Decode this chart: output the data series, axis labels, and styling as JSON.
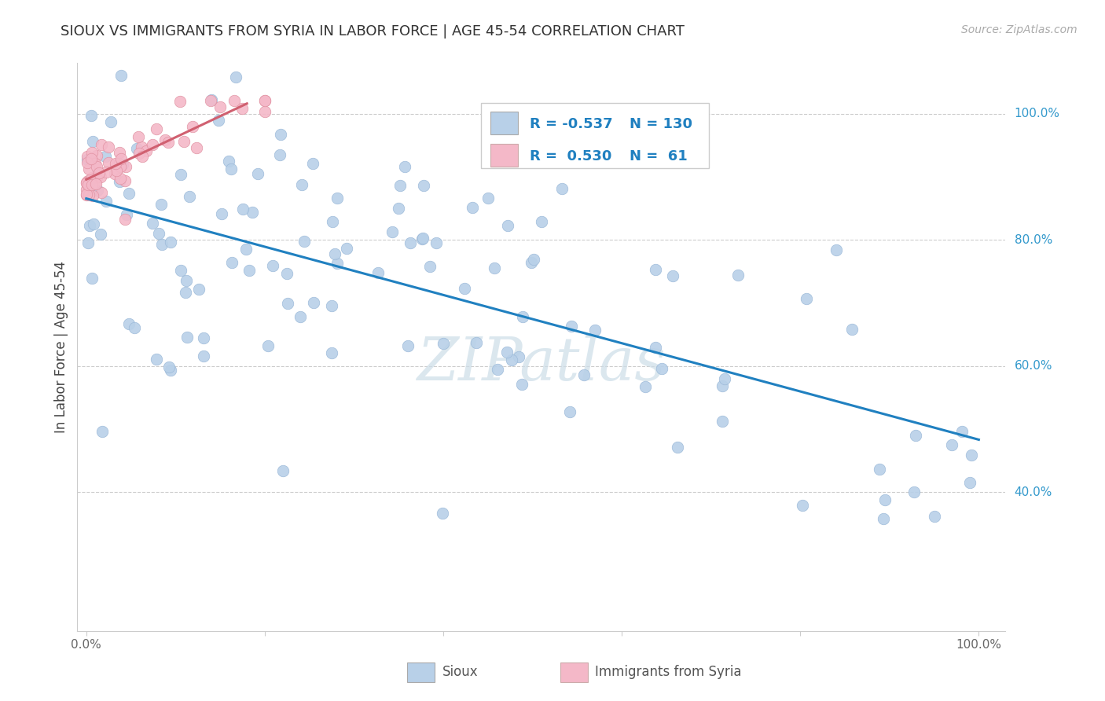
{
  "title": "SIOUX VS IMMIGRANTS FROM SYRIA IN LABOR FORCE | AGE 45-54 CORRELATION CHART",
  "source": "Source: ZipAtlas.com",
  "ylabel": "In Labor Force | Age 45-54",
  "xlim": [
    -0.01,
    1.03
  ],
  "ylim": [
    0.18,
    1.08
  ],
  "xtick_positions": [
    0.0,
    0.2,
    0.4,
    0.6,
    0.8,
    1.0
  ],
  "xtick_labels": [
    "0.0%",
    "",
    "",
    "",
    "",
    "100.0%"
  ],
  "ytick_vals": [
    1.0,
    0.8,
    0.6,
    0.4
  ],
  "ytick_labels": [
    "100.0%",
    "80.0%",
    "60.0%",
    "40.0%"
  ],
  "legend_r_sioux": "-0.537",
  "legend_n_sioux": "130",
  "legend_r_syria": "0.530",
  "legend_n_syria": "61",
  "sioux_color": "#b8d0e8",
  "syria_color": "#f4b8c8",
  "trendline_sioux_color": "#2080c0",
  "trendline_syria_color": "#d06070",
  "background_color": "#ffffff",
  "watermark": "ZIPatlas",
  "watermark_color": "#ccdde8",
  "grid_color": "#cccccc",
  "title_fontsize": 13,
  "legend_fontsize": 13,
  "sioux_seed": 7,
  "syria_seed": 3
}
